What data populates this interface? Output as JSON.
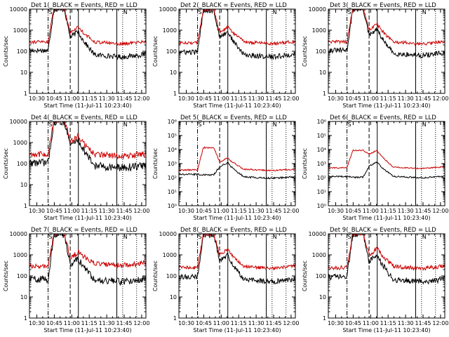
{
  "chart_data": {
    "type": "line",
    "common": {
      "x_tick_labels": [
        "10:30",
        "10:45",
        "11:00",
        "11:15",
        "11:30",
        "11:45",
        "12:00"
      ],
      "xlabel": "Start Time (11-Jul-11 10:23:40)",
      "ylabel": "Counts/sec",
      "y_scale": "log",
      "x_range_minutes_from_start": [
        0,
        100
      ],
      "grid": false,
      "series": [
        {
          "name": "Events",
          "color": "#000000"
        },
        {
          "name": "LLD",
          "color": "#cc0000"
        }
      ],
      "vertical_markers": {
        "dash_dot_at_min": 16,
        "dashed_at_min": 35,
        "solid_at_min": [
          42,
          75
        ],
        "dotted_at_min": [
          80,
          92
        ]
      },
      "corner_labels": [
        "S",
        "N"
      ]
    },
    "panels": [
      {
        "title": "Det 1(_BLACK = Events, RED = LLD",
        "ylim": [
          1,
          10000
        ],
        "yticks": [
          1,
          10,
          100,
          1000,
          10000
        ],
        "ytick_labels": [
          "1",
          "10",
          "100",
          "1000",
          "10000"
        ],
        "red": {
          "base": 280,
          "peak": 11000,
          "second_peak": 1500,
          "end": 250,
          "noise": 0.08
        },
        "black": {
          "base": 110,
          "peak": 10000,
          "second_peak": 900,
          "end": 60,
          "noise": 0.12
        }
      },
      {
        "title": "Det 2(_BLACK = Events, RED = LLD",
        "ylim": [
          1,
          10000
        ],
        "yticks": [
          1,
          10,
          100,
          1000,
          10000
        ],
        "ytick_labels": [
          "1",
          "10",
          "100",
          "1000",
          "10000"
        ],
        "red": {
          "base": 250,
          "peak": 10000,
          "second_peak": 1500,
          "end": 250,
          "noise": 0.08
        },
        "black": {
          "base": 90,
          "peak": 9000,
          "second_peak": 900,
          "end": 60,
          "noise": 0.12
        }
      },
      {
        "title": "Det 3(_BLACK = Events, RED = LLD",
        "ylim": [
          1,
          10000
        ],
        "yticks": [
          1,
          10,
          100,
          1000,
          10000
        ],
        "ytick_labels": [
          "1",
          "10",
          "100",
          "1000",
          "10000"
        ],
        "red": {
          "base": 280,
          "peak": 11000,
          "second_peak": 2000,
          "end": 250,
          "noise": 0.08
        },
        "black": {
          "base": 110,
          "peak": 10000,
          "second_peak": 1100,
          "end": 70,
          "noise": 0.12
        }
      },
      {
        "title": "Det 4(_BLACK = Events, RED = LLD",
        "ylim": [
          1,
          10000
        ],
        "yticks": [
          1,
          10,
          100,
          1000,
          10000
        ],
        "ytick_labels": [
          "1",
          "10",
          "100",
          "1000",
          "10000"
        ],
        "red": {
          "base": 280,
          "peak": 11000,
          "second_peak": 2200,
          "end": 250,
          "noise": 0.14
        },
        "black": {
          "base": 110,
          "peak": 10000,
          "second_peak": 1500,
          "end": 70,
          "noise": 0.18
        }
      },
      {
        "title": "Det 5(_BLACK = Events, RED = LLD",
        "ylim": [
          1,
          1000000
        ],
        "yticks": [
          1,
          10,
          100,
          1000,
          10000,
          100000,
          1000000
        ],
        "ytick_labels": [
          "10⁰",
          "10¹",
          "10²",
          "10³",
          "10⁴",
          "10⁵",
          "10⁶"
        ],
        "red": {
          "base": 350,
          "peak": 14000,
          "second_peak": 2600,
          "end": 350,
          "noise": 0.05
        },
        "black": {
          "base": 170,
          "peak": 160,
          "second_peak": 1200,
          "end": 100,
          "noise": 0.06
        }
      },
      {
        "title": "Det 6(_BLACK = Events, RED = LLD",
        "ylim": [
          1,
          1000000
        ],
        "yticks": [
          1,
          10,
          100,
          1000,
          10000,
          100000,
          1000000
        ],
        "ytick_labels": [
          "10⁰",
          "10¹",
          "10²",
          "10³",
          "10⁴",
          "10⁵",
          "10⁶"
        ],
        "red": {
          "base": 500,
          "peak": 9000,
          "second_peak": 9000,
          "end": 500,
          "noise": 0.04
        },
        "black": {
          "base": 120,
          "peak": 110,
          "second_peak": 1300,
          "end": 110,
          "noise": 0.05
        }
      },
      {
        "title": "Det 7(_BLACK = Events, RED = LLD",
        "ylim": [
          1,
          10000
        ],
        "yticks": [
          1,
          10,
          100,
          1000,
          10000
        ],
        "ytick_labels": [
          "1",
          "10",
          "100",
          "1000",
          "10000"
        ],
        "red": {
          "base": 300,
          "peak": 11000,
          "second_peak": 1400,
          "end": 350,
          "noise": 0.12
        },
        "black": {
          "base": 70,
          "peak": 9000,
          "second_peak": 700,
          "end": 60,
          "noise": 0.16
        }
      },
      {
        "title": "Det 8(_BLACK = Events, RED = LLD",
        "ylim": [
          1,
          10000
        ],
        "yticks": [
          1,
          10,
          100,
          1000,
          10000
        ],
        "ytick_labels": [
          "1",
          "10",
          "100",
          "1000",
          "10000"
        ],
        "red": {
          "base": 250,
          "peak": 10000,
          "second_peak": 2000,
          "end": 250,
          "noise": 0.08
        },
        "black": {
          "base": 90,
          "peak": 9000,
          "second_peak": 1000,
          "end": 60,
          "noise": 0.12
        }
      },
      {
        "title": "Det 9(_BLACK = Events, RED = LLD",
        "ylim": [
          1,
          10000
        ],
        "yticks": [
          1,
          10,
          100,
          1000,
          10000
        ],
        "ytick_labels": [
          "1",
          "10",
          "100",
          "1000",
          "10000"
        ],
        "red": {
          "base": 250,
          "peak": 11000,
          "second_peak": 2000,
          "end": 250,
          "noise": 0.1
        },
        "black": {
          "base": 90,
          "peak": 10000,
          "second_peak": 1000,
          "end": 60,
          "noise": 0.14
        }
      }
    ]
  }
}
